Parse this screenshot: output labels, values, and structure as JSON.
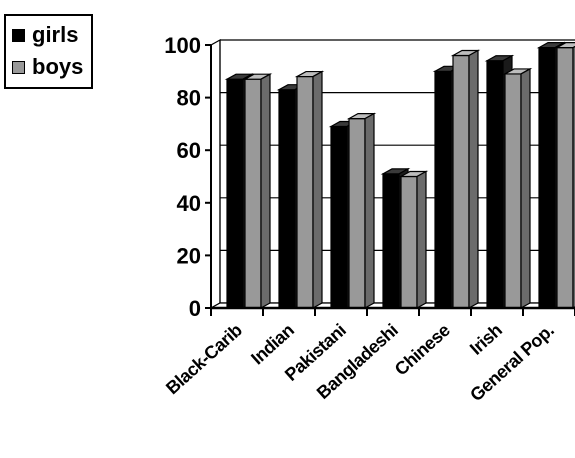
{
  "chart_data": {
    "type": "bar",
    "categories": [
      "Black-Carib",
      "Indian",
      "Pakistani",
      "Bangladeshi",
      "Chinese",
      "Irish",
      "General Pop."
    ],
    "series": [
      {
        "name": "girls",
        "values": [
          87,
          83,
          69,
          51,
          90,
          94,
          99
        ],
        "color": "#000000"
      },
      {
        "name": "boys",
        "values": [
          87,
          88,
          72,
          50,
          96,
          89,
          99
        ],
        "color": "#999999"
      }
    ],
    "ylim": [
      0,
      100
    ],
    "yticks": [
      0,
      20,
      40,
      60,
      80,
      100
    ],
    "xlabel": "",
    "ylabel": "",
    "grid": true,
    "style": "3d",
    "legend_position": "top-left"
  },
  "legend": {
    "items": [
      {
        "label": "girls",
        "color": "#000000"
      },
      {
        "label": "boys",
        "color": "#999999"
      }
    ]
  }
}
